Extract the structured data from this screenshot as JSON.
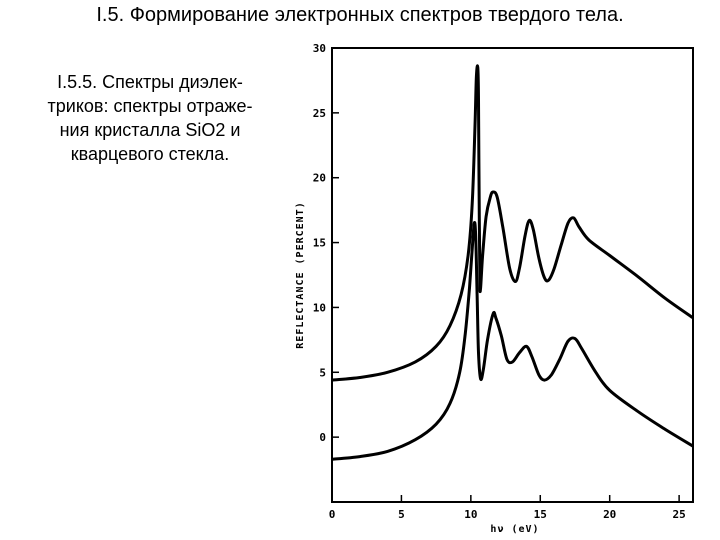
{
  "heading": "I.5. Формирование электронных спектров твердого тела.",
  "subtitle_lines": [
    "I.5.5. Спектры диэлек-",
    "триков: спектры отраже-",
    "ния кристалла SiO2 и",
    "кварцевого стекла."
  ],
  "chart_data": {
    "type": "line",
    "xlabel": "hν (eV)",
    "ylabel": "REFLECTANCE (PERCENT)",
    "xlim": [
      0,
      26
    ],
    "ylim": [
      -5,
      30
    ],
    "x_ticks": [
      0,
      5,
      10,
      15,
      20,
      25
    ],
    "y_ticks": [
      0,
      5,
      10,
      15,
      20,
      25,
      30
    ],
    "grid": false,
    "series": [
      {
        "points": [
          [
            0,
            4.4
          ],
          [
            2,
            4.6
          ],
          [
            4,
            5.0
          ],
          [
            6,
            5.8
          ],
          [
            7.5,
            7.0
          ],
          [
            8.5,
            8.6
          ],
          [
            9.3,
            11.0
          ],
          [
            9.8,
            14.0
          ],
          [
            10.1,
            18.0
          ],
          [
            10.3,
            24.0
          ],
          [
            10.4,
            27.8
          ],
          [
            10.5,
            28.5
          ],
          [
            10.55,
            26.0
          ],
          [
            10.6,
            18.0
          ],
          [
            10.65,
            12.0
          ],
          [
            10.7,
            11.5
          ],
          [
            10.85,
            14.0
          ],
          [
            11.1,
            17.0
          ],
          [
            11.4,
            18.5
          ],
          [
            11.6,
            18.9
          ],
          [
            11.9,
            18.5
          ],
          [
            12.3,
            16.2
          ],
          [
            12.8,
            13.0
          ],
          [
            13.2,
            12.0
          ],
          [
            13.5,
            13.0
          ],
          [
            13.9,
            15.5
          ],
          [
            14.2,
            16.7
          ],
          [
            14.5,
            16.0
          ],
          [
            14.9,
            13.8
          ],
          [
            15.3,
            12.3
          ],
          [
            15.6,
            12.1
          ],
          [
            16.0,
            13.0
          ],
          [
            16.5,
            14.8
          ],
          [
            17.0,
            16.5
          ],
          [
            17.4,
            16.9
          ],
          [
            17.8,
            16.2
          ],
          [
            18.5,
            15.2
          ],
          [
            20,
            14.0
          ],
          [
            22,
            12.4
          ],
          [
            24,
            10.7
          ],
          [
            26,
            9.2
          ]
        ]
      },
      {
        "points": [
          [
            0,
            -1.7
          ],
          [
            2,
            -1.5
          ],
          [
            4,
            -1.1
          ],
          [
            6,
            -0.2
          ],
          [
            7.5,
            1.0
          ],
          [
            8.5,
            2.6
          ],
          [
            9.2,
            5.0
          ],
          [
            9.6,
            8.0
          ],
          [
            9.9,
            11.5
          ],
          [
            10.1,
            14.5
          ],
          [
            10.25,
            16.5
          ],
          [
            10.35,
            15.5
          ],
          [
            10.45,
            11.0
          ],
          [
            10.55,
            6.5
          ],
          [
            10.7,
            4.5
          ],
          [
            10.9,
            5.2
          ],
          [
            11.2,
            7.5
          ],
          [
            11.6,
            9.5
          ],
          [
            11.8,
            9.2
          ],
          [
            12.2,
            7.8
          ],
          [
            12.6,
            6.0
          ],
          [
            13.0,
            5.8
          ],
          [
            13.5,
            6.5
          ],
          [
            14.0,
            7.0
          ],
          [
            14.4,
            6.2
          ],
          [
            14.9,
            4.8
          ],
          [
            15.3,
            4.4
          ],
          [
            15.8,
            4.8
          ],
          [
            16.4,
            6.0
          ],
          [
            17.0,
            7.4
          ],
          [
            17.5,
            7.6
          ],
          [
            18.0,
            6.8
          ],
          [
            19,
            5.0
          ],
          [
            20,
            3.6
          ],
          [
            22,
            2.0
          ],
          [
            24,
            0.6
          ],
          [
            26,
            -0.7
          ]
        ]
      }
    ]
  },
  "colors": {
    "line": "#000000",
    "background": "#ffffff"
  }
}
